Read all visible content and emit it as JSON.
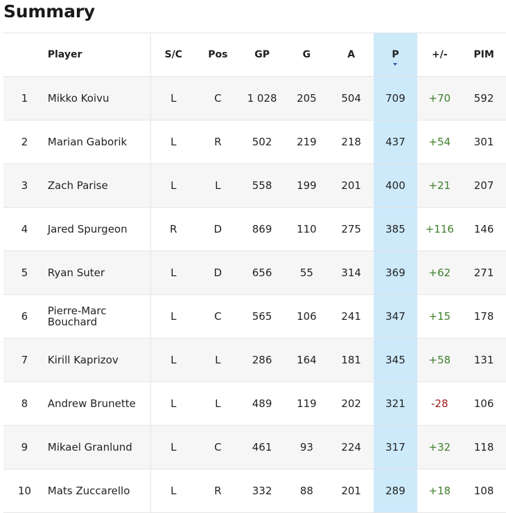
{
  "page": {
    "title": "Summary"
  },
  "table": {
    "columns": {
      "rank": "",
      "player": "Player",
      "sc": "S/C",
      "pos": "Pos",
      "gp": "GP",
      "g": "G",
      "a": "A",
      "p": "P",
      "plus_minus": "+/-",
      "pim": "PIM"
    },
    "sorted_column": "P",
    "rows": [
      {
        "rank": "1",
        "player": "Mikko Koivu",
        "sc": "L",
        "pos": "C",
        "gp": "1 028",
        "g": "205",
        "a": "504",
        "p": "709",
        "plus_minus": "+70",
        "pim": "592"
      },
      {
        "rank": "2",
        "player": "Marian Gaborik",
        "sc": "L",
        "pos": "R",
        "gp": "502",
        "g": "219",
        "a": "218",
        "p": "437",
        "plus_minus": "+54",
        "pim": "301"
      },
      {
        "rank": "3",
        "player": "Zach Parise",
        "sc": "L",
        "pos": "L",
        "gp": "558",
        "g": "199",
        "a": "201",
        "p": "400",
        "plus_minus": "+21",
        "pim": "207"
      },
      {
        "rank": "4",
        "player": "Jared Spurgeon",
        "sc": "R",
        "pos": "D",
        "gp": "869",
        "g": "110",
        "a": "275",
        "p": "385",
        "plus_minus": "+116",
        "pim": "146"
      },
      {
        "rank": "5",
        "player": "Ryan Suter",
        "sc": "L",
        "pos": "D",
        "gp": "656",
        "g": "55",
        "a": "314",
        "p": "369",
        "plus_minus": "+62",
        "pim": "271"
      },
      {
        "rank": "6",
        "player": "Pierre-Marc Bouchard",
        "sc": "L",
        "pos": "C",
        "gp": "565",
        "g": "106",
        "a": "241",
        "p": "347",
        "plus_minus": "+15",
        "pim": "178"
      },
      {
        "rank": "7",
        "player": "Kirill Kaprizov",
        "sc": "L",
        "pos": "L",
        "gp": "286",
        "g": "164",
        "a": "181",
        "p": "345",
        "plus_minus": "+58",
        "pim": "131"
      },
      {
        "rank": "8",
        "player": "Andrew Brunette",
        "sc": "L",
        "pos": "L",
        "gp": "489",
        "g": "119",
        "a": "202",
        "p": "321",
        "plus_minus": "-28",
        "pim": "106"
      },
      {
        "rank": "9",
        "player": "Mikael Granlund",
        "sc": "L",
        "pos": "C",
        "gp": "461",
        "g": "93",
        "a": "224",
        "p": "317",
        "plus_minus": "+32",
        "pim": "118"
      },
      {
        "rank": "10",
        "player": "Mats Zuccarello",
        "sc": "L",
        "pos": "R",
        "gp": "332",
        "g": "88",
        "a": "201",
        "p": "289",
        "plus_minus": "+18",
        "pim": "108"
      }
    ]
  },
  "colors": {
    "sorted_column_bg": "#cdeafb",
    "positive": "#3f7f2a",
    "negative": "#a01b1b",
    "row_alt_bg": "#f6f6f6"
  },
  "icons": {
    "sort": "sort-descending-icon"
  }
}
